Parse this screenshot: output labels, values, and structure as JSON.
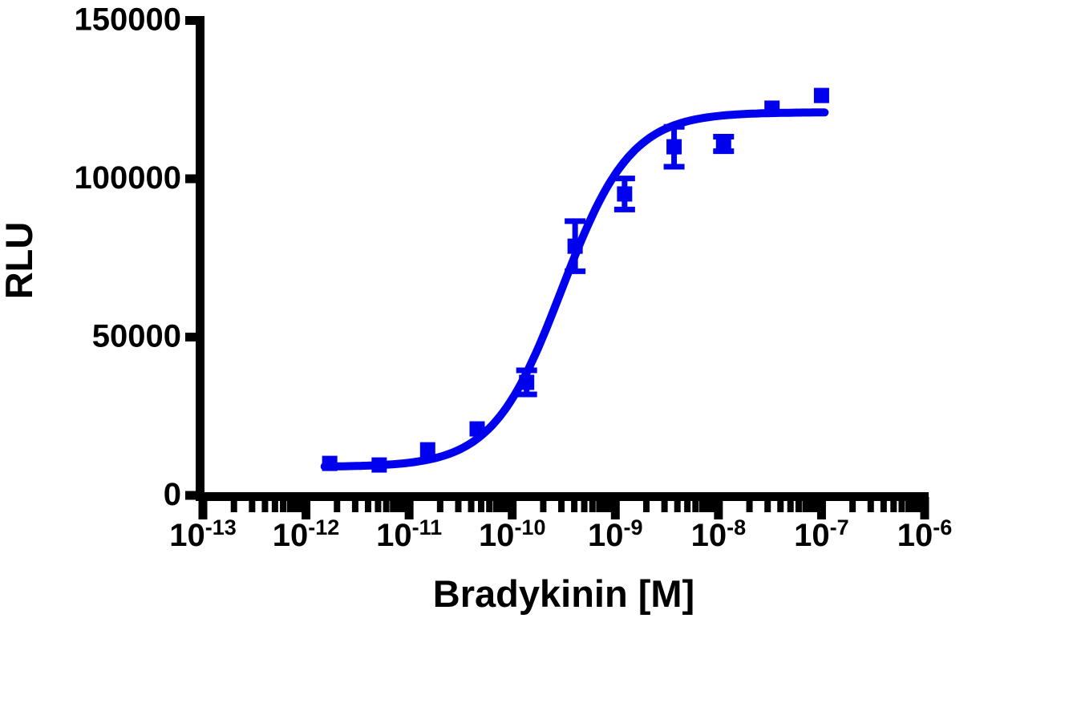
{
  "figure": {
    "background": "#FFFFFF"
  },
  "colors": {
    "series_blue": "#0000EE",
    "axis_black": "#000000"
  },
  "chart_data": {
    "type": "scatter",
    "title": "",
    "xlabel": "Bradykinin [M]",
    "ylabel": "RLU",
    "x_scale": "log10",
    "xlim_exponents": [
      -13,
      -6
    ],
    "ylim": [
      0,
      150000
    ],
    "grid": false,
    "legend": "none",
    "x_tick_base": "10",
    "x_tick_exponents": [
      -13,
      -12,
      -11,
      -10,
      -9,
      -8,
      -7,
      -6
    ],
    "x_minor_tick_multiples": [
      2,
      3,
      4,
      5,
      6,
      7,
      8,
      9
    ],
    "y_ticks": [
      0,
      50000,
      100000,
      150000
    ],
    "y_tick_labels": [
      "0",
      "50000",
      "100000",
      "150000"
    ],
    "series": [
      {
        "name": "Bradykinin",
        "color": "#0000EE",
        "marker": "filled-square",
        "points": [
          {
            "conc_M": 1.69e-12,
            "log_conc": -11.77,
            "rlu": 10100,
            "sem": null
          },
          {
            "conc_M": 5.08e-12,
            "log_conc": -11.29,
            "rlu": 9600,
            "sem": null
          },
          {
            "conc_M": 1.52e-11,
            "log_conc": -10.82,
            "rlu": 14400,
            "sem": null
          },
          {
            "conc_M": 4.57e-11,
            "log_conc": -10.34,
            "rlu": 21000,
            "sem": null
          },
          {
            "conc_M": 1.37e-10,
            "log_conc": -9.86,
            "rlu": 35700,
            "sem": 3800
          },
          {
            "conc_M": 4.12e-10,
            "log_conc": -9.39,
            "rlu": 78700,
            "sem": 7900
          },
          {
            "conc_M": 1.23e-09,
            "log_conc": -8.91,
            "rlu": 95200,
            "sem": 4900
          },
          {
            "conc_M": 3.7e-09,
            "log_conc": -8.43,
            "rlu": 110100,
            "sem": 6300
          },
          {
            "conc_M": 1.11e-08,
            "log_conc": -7.95,
            "rlu": 111000,
            "sem": 2300
          },
          {
            "conc_M": 3.33e-08,
            "log_conc": -7.48,
            "rlu": 122300,
            "sem": null
          },
          {
            "conc_M": 1e-07,
            "log_conc": -7.0,
            "rlu": 126300,
            "sem": null
          }
        ]
      }
    ],
    "fit": {
      "model": "4PL sigmoidal dose-response",
      "bottom_rlu": 9000,
      "top_rlu": 121000,
      "log_ec50": -9.52,
      "ec50_M": 3e-10,
      "hill_slope": 1.3,
      "draw_log_range": [
        -11.82,
        -6.97
      ]
    }
  }
}
